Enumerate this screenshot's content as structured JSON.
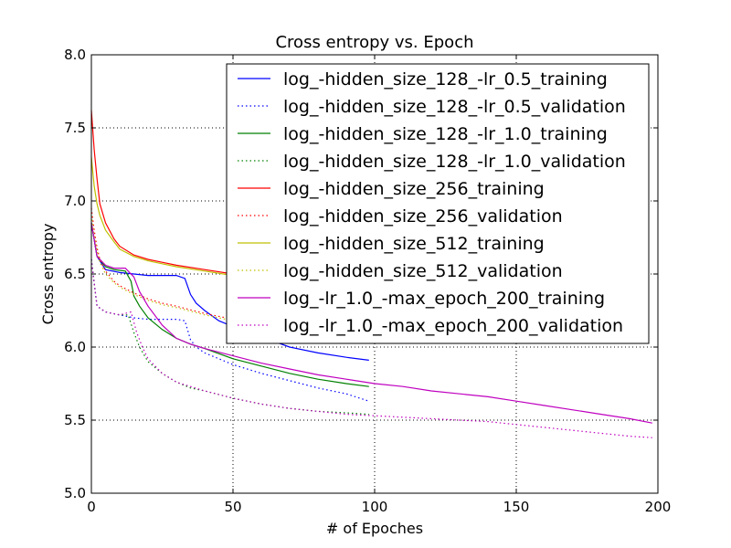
{
  "chart_data": {
    "type": "line",
    "title": "Cross entropy vs. Epoch",
    "xlabel": "# of Epoches",
    "ylabel": "Cross entropy",
    "xlim": [
      0,
      200
    ],
    "ylim": [
      5.0,
      8.0
    ],
    "xticks": [
      0,
      50,
      100,
      150,
      200
    ],
    "xtick_labels": [
      "0",
      "50",
      "100",
      "150",
      "200"
    ],
    "yticks": [
      5.0,
      5.5,
      6.0,
      6.5,
      7.0,
      7.5,
      8.0
    ],
    "ytick_labels": [
      "5.0",
      "5.5",
      "6.0",
      "6.5",
      "7.0",
      "7.5",
      "8.0"
    ],
    "grid": true,
    "legend_position": "top-right",
    "series": [
      {
        "name": "log_-hidden_size_128_-lr_0.5_training",
        "color": "#0000ff",
        "style": "solid",
        "x": [
          0,
          2,
          5,
          10,
          15,
          20,
          25,
          30,
          33,
          35,
          37,
          40,
          45,
          50,
          60,
          70,
          80,
          90,
          98
        ],
        "y": [
          6.85,
          6.62,
          6.53,
          6.51,
          6.5,
          6.49,
          6.49,
          6.49,
          6.47,
          6.36,
          6.3,
          6.25,
          6.18,
          6.14,
          6.07,
          6.0,
          5.96,
          5.93,
          5.91
        ]
      },
      {
        "name": "log_-hidden_size_128_-lr_0.5_validation",
        "color": "#0000ff",
        "style": "dotted",
        "x": [
          0,
          2,
          5,
          10,
          15,
          20,
          25,
          30,
          33,
          35,
          37,
          40,
          45,
          50,
          60,
          70,
          80,
          90,
          98
        ],
        "y": [
          6.6,
          6.28,
          6.24,
          6.22,
          6.2,
          6.19,
          6.19,
          6.19,
          6.18,
          6.05,
          6.0,
          5.96,
          5.92,
          5.88,
          5.82,
          5.77,
          5.72,
          5.68,
          5.63
        ]
      },
      {
        "name": "log_-hidden_size_128_-lr_1.0_training",
        "color": "#008000",
        "style": "solid",
        "x": [
          0,
          2,
          5,
          8,
          12,
          14,
          15,
          17,
          20,
          25,
          30,
          35,
          40,
          50,
          60,
          70,
          80,
          90,
          98
        ],
        "y": [
          6.85,
          6.62,
          6.55,
          6.53,
          6.52,
          6.45,
          6.35,
          6.28,
          6.2,
          6.12,
          6.06,
          6.02,
          5.99,
          5.92,
          5.87,
          5.82,
          5.78,
          5.75,
          5.73
        ]
      },
      {
        "name": "log_-hidden_size_128_-lr_1.0_validation",
        "color": "#008000",
        "style": "dotted",
        "x": [
          0,
          2,
          5,
          10,
          13,
          15,
          17,
          20,
          25,
          30,
          35,
          40,
          50,
          60,
          70,
          80,
          90,
          98
        ],
        "y": [
          6.6,
          6.28,
          6.24,
          6.22,
          6.22,
          6.1,
          6.0,
          5.9,
          5.82,
          5.76,
          5.72,
          5.7,
          5.65,
          5.61,
          5.58,
          5.56,
          5.55,
          5.54
        ]
      },
      {
        "name": "log_-hidden_size_256_training",
        "color": "#ff0000",
        "style": "solid",
        "x": [
          0,
          1,
          2,
          3,
          5,
          8,
          10,
          15,
          20,
          25,
          30,
          40,
          50,
          60,
          70
        ],
        "y": [
          7.62,
          7.35,
          7.15,
          6.98,
          6.85,
          6.74,
          6.69,
          6.63,
          6.6,
          6.58,
          6.56,
          6.53,
          6.5,
          6.47,
          6.44
        ]
      },
      {
        "name": "log_-hidden_size_256_validation",
        "color": "#ff0000",
        "style": "dotted",
        "x": [
          0,
          1,
          2,
          3,
          5,
          8,
          10,
          15,
          20,
          25,
          30,
          40,
          50,
          60
        ],
        "y": [
          6.95,
          6.8,
          6.68,
          6.6,
          6.52,
          6.45,
          6.42,
          6.37,
          6.33,
          6.3,
          6.28,
          6.23,
          6.19,
          6.15
        ]
      },
      {
        "name": "log_-hidden_size_512_training",
        "color": "#bfbf00",
        "style": "solid",
        "x": [
          0,
          1,
          2,
          3,
          5,
          8,
          10,
          15,
          20,
          25,
          30,
          40,
          50,
          60,
          70
        ],
        "y": [
          7.3,
          7.1,
          6.98,
          6.9,
          6.8,
          6.72,
          6.67,
          6.62,
          6.59,
          6.57,
          6.55,
          6.52,
          6.49,
          6.46,
          6.43
        ]
      },
      {
        "name": "log_-hidden_size_512_validation",
        "color": "#bfbf00",
        "style": "dotted",
        "x": [
          0,
          1,
          2,
          3,
          5,
          8,
          10,
          15,
          20,
          25,
          30,
          40,
          50,
          60
        ],
        "y": [
          6.9,
          6.76,
          6.66,
          6.58,
          6.5,
          6.44,
          6.41,
          6.36,
          6.32,
          6.29,
          6.27,
          6.22,
          6.18,
          6.14
        ]
      },
      {
        "name": "log_-lr_1.0_-max_epoch_200_training",
        "color": "#bf00bf",
        "style": "solid",
        "x": [
          0,
          2,
          5,
          8,
          12,
          15,
          17,
          20,
          25,
          30,
          35,
          40,
          50,
          60,
          70,
          80,
          90,
          100,
          110,
          120,
          130,
          140,
          150,
          160,
          170,
          180,
          190,
          198
        ],
        "y": [
          6.85,
          6.62,
          6.56,
          6.54,
          6.54,
          6.48,
          6.38,
          6.28,
          6.15,
          6.06,
          6.02,
          5.99,
          5.94,
          5.89,
          5.85,
          5.81,
          5.78,
          5.75,
          5.73,
          5.7,
          5.68,
          5.66,
          5.63,
          5.6,
          5.57,
          5.54,
          5.51,
          5.48
        ]
      },
      {
        "name": "log_-lr_1.0_-max_epoch_200_validation",
        "color": "#bf00bf",
        "style": "dotted",
        "x": [
          0,
          2,
          5,
          10,
          14,
          16,
          18,
          20,
          25,
          30,
          35,
          40,
          50,
          60,
          70,
          80,
          90,
          100,
          110,
          120,
          130,
          140,
          150,
          160,
          170,
          180,
          190,
          198
        ],
        "y": [
          6.6,
          6.28,
          6.24,
          6.22,
          6.24,
          6.1,
          6.0,
          5.92,
          5.82,
          5.76,
          5.73,
          5.7,
          5.65,
          5.61,
          5.58,
          5.56,
          5.54,
          5.53,
          5.52,
          5.51,
          5.5,
          5.49,
          5.47,
          5.45,
          5.43,
          5.41,
          5.39,
          5.38
        ]
      }
    ]
  }
}
